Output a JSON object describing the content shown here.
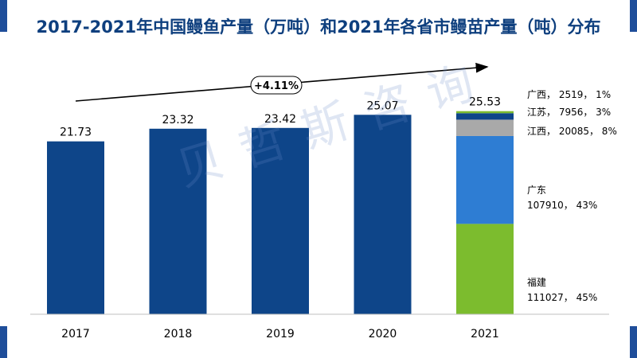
{
  "title": "2017-2021年中国鳗鱼产量（万吨）和2021年各省市鳗苗产量（吨）分布",
  "watermark": "贝哲斯咨询",
  "colors": {
    "bar": "#0E4589",
    "accent": "#0E3F7E"
  },
  "chart_data": {
    "type": "bar",
    "title": "2017-2021年中国鳗鱼产量（万吨）和2021年各省市鳗苗产量（吨）分布",
    "categories": [
      "2017",
      "2018",
      "2019",
      "2020",
      "2021"
    ],
    "values": [
      21.73,
      23.32,
      23.42,
      25.07,
      25.53
    ],
    "value_labels": [
      "21.73",
      "23.32",
      "23.42",
      "25.07",
      "25.53"
    ],
    "ylim": [
      0,
      30
    ],
    "grid": false,
    "growth_annotation": "+4.11%",
    "stacked_2021": [
      {
        "province": "福建",
        "value": 111027,
        "share": 45,
        "label_lines": [
          "福建",
          "111027， 45%"
        ],
        "color": "#7CBC2E"
      },
      {
        "province": "广东",
        "value": 107910,
        "share": 43,
        "label_lines": [
          "广东",
          "107910， 43%"
        ],
        "color": "#2E7DD3"
      },
      {
        "province": "江西",
        "value": 20085,
        "share": 8,
        "label_lines": [
          "江西， 20085， 8%"
        ],
        "color": "#A9A9A9"
      },
      {
        "province": "江苏",
        "value": 7956,
        "share": 3,
        "label_lines": [
          "江苏， 7956， 3%"
        ],
        "color": "#0E4589"
      },
      {
        "province": "广西",
        "value": 2519,
        "share": 1,
        "label_lines": [
          "广西， 2519， 1%"
        ],
        "color": "#7CBC2E"
      }
    ]
  }
}
